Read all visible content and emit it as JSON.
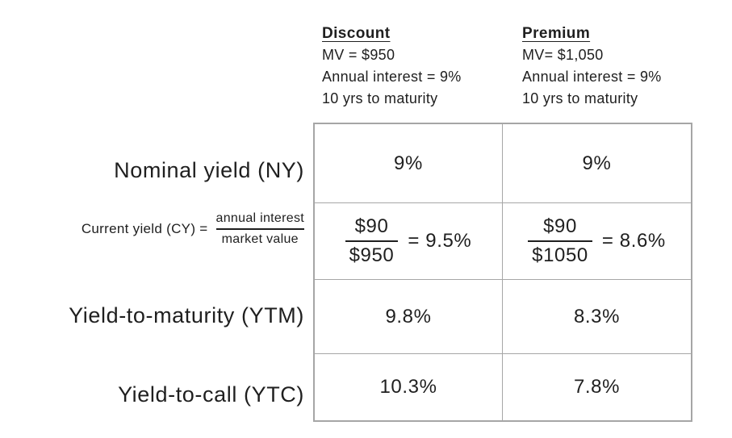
{
  "page": {
    "background": "#ffffff",
    "text_color": "#1f1f1f",
    "table_border_color": "#a6a6a6"
  },
  "headers": {
    "discount": {
      "title": "Discount",
      "line1": "MV = $950",
      "line2": "Annual interest = 9%",
      "line3": "10 yrs to maturity"
    },
    "premium": {
      "title": "Premium",
      "line1": "MV= $1,050",
      "line2": "Annual interest = 9%",
      "line3": "10 yrs to maturity"
    }
  },
  "row_labels": {
    "nominal": "Nominal yield (NY)",
    "current": {
      "prefix": "Current yield (CY) =",
      "numerator": "annual interest",
      "denominator": "market value"
    },
    "ytm": "Yield-to-maturity (YTM)",
    "ytc": "Yield-to-call (YTC)"
  },
  "table": {
    "nominal": {
      "discount": "9%",
      "premium": "9%"
    },
    "current": {
      "discount": {
        "numerator": "$90",
        "denominator": "$950",
        "result": "= 9.5%"
      },
      "premium": {
        "numerator": "$90",
        "denominator": "$1050",
        "result": "= 8.6%"
      }
    },
    "ytm": {
      "discount": "9.8%",
      "premium": "8.3%"
    },
    "ytc": {
      "discount": "10.3%",
      "premium": "7.8%"
    }
  },
  "chart_data": {
    "type": "table",
    "columns": [
      "",
      "Discount — MV = $950, Annual interest = 9%, 10 yrs to maturity",
      "Premium — MV= $1,050, Annual interest = 9%, 10 yrs to maturity"
    ],
    "rows": [
      [
        "Nominal yield (NY)",
        "9%",
        "9%"
      ],
      [
        "Current yield (CY) = annual interest / market value",
        "$90 / $950 = 9.5%",
        "$90 / $1050 = 8.6%"
      ],
      [
        "Yield-to-maturity (YTM)",
        "9.8%",
        "8.3%"
      ],
      [
        "Yield-to-call (YTC)",
        "10.3%",
        "7.8%"
      ]
    ]
  }
}
